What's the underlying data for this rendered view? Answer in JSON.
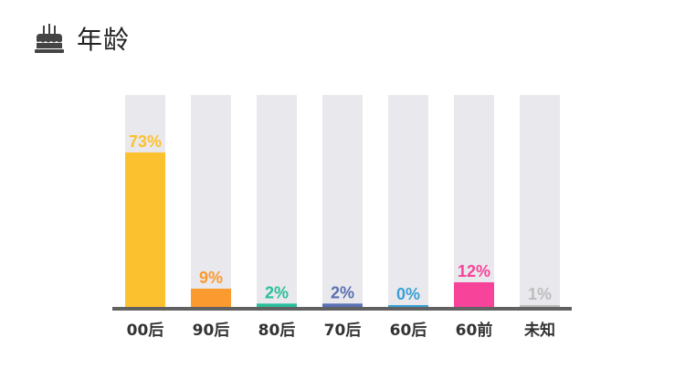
{
  "header": {
    "title": "年龄",
    "icon": "birthday-cake-icon"
  },
  "chart_data": {
    "type": "bar",
    "categories": [
      "00后",
      "90后",
      "80后",
      "70后",
      "60后",
      "60前",
      "未知"
    ],
    "values": [
      73,
      9,
      2,
      2,
      0,
      12,
      1
    ],
    "value_labels": [
      "73%",
      "9%",
      "2%",
      "2%",
      "0%",
      "12%",
      "1%"
    ],
    "colors": [
      "#FCC12E",
      "#FB9A2F",
      "#2BBE9A",
      "#5B6FB3",
      "#3AA0D5",
      "#F7439A",
      "#BDBDBD"
    ],
    "track_color": "#E9E8EC",
    "baseline_color": "#616161",
    "ylim": [
      0,
      100
    ],
    "title": "",
    "xlabel": "",
    "ylabel": ""
  }
}
